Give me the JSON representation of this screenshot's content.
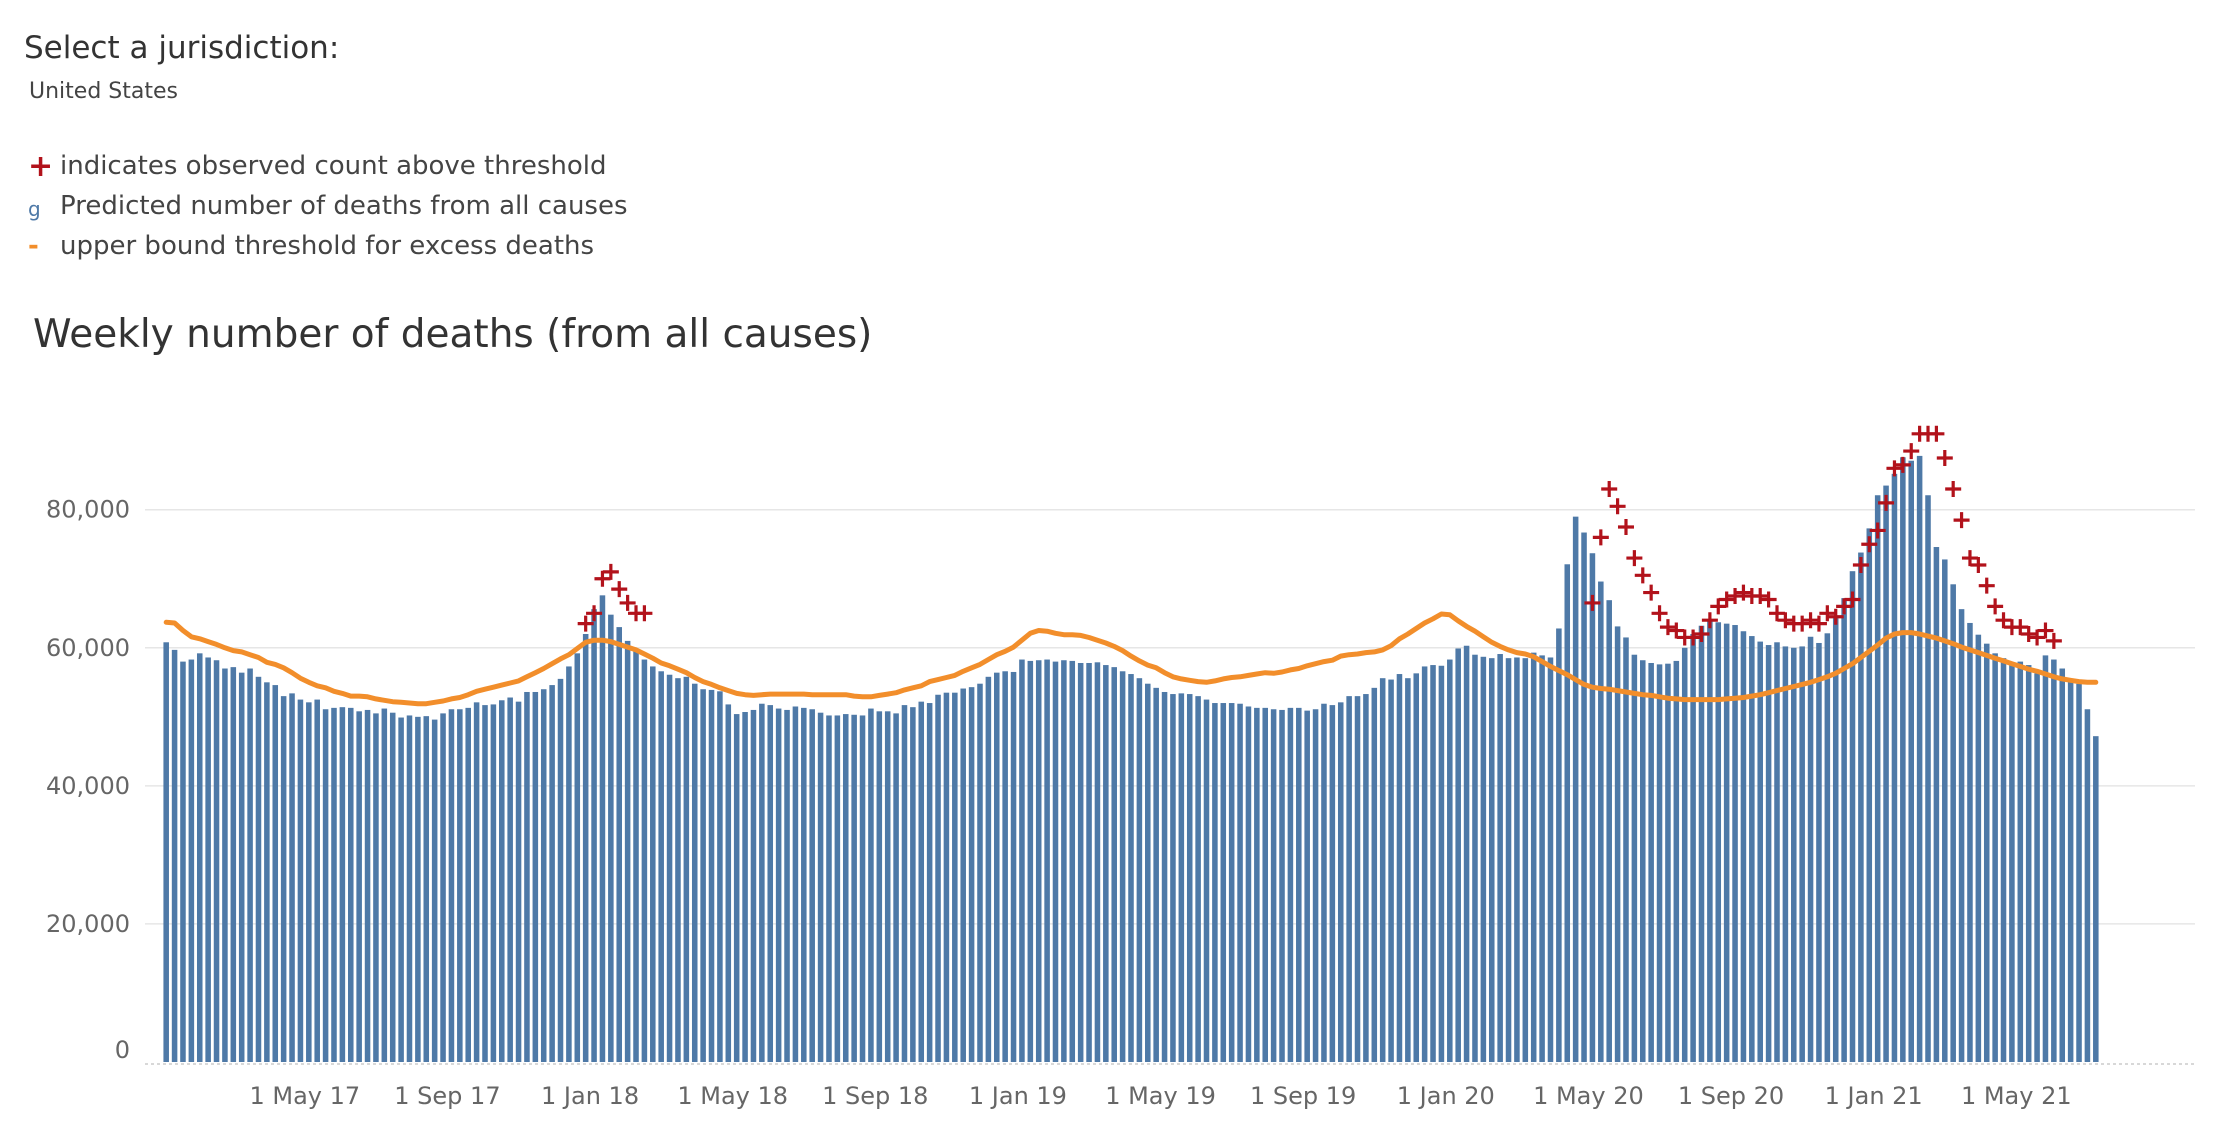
{
  "filter": {
    "label": "Select a jurisdiction:",
    "value": "United States"
  },
  "legend": [
    {
      "symbol": "+",
      "icon": "plus-icon",
      "color": "#b2121b",
      "text": "indicates observed count above threshold"
    },
    {
      "symbol": "g",
      "icon": "square-icon",
      "color": "#4e79a7",
      "text": "Predicted number of deaths from all causes"
    },
    {
      "symbol": "-",
      "icon": "dash-icon",
      "color": "#f28e2b",
      "text": "upper bound threshold for excess deaths"
    }
  ],
  "chart_data": {
    "type": "bar",
    "title": "Weekly number of deaths (from all causes)",
    "xlabel": "",
    "ylabel": "",
    "ylim": [
      0,
      93000
    ],
    "y_ticks": [
      0,
      20000,
      40000,
      60000,
      80000
    ],
    "y_tick_labels": [
      "0",
      "20,000",
      "40,000",
      "60,000",
      "80,000"
    ],
    "x_tick_labels": [
      "1 May 17",
      "1 Sep 17",
      "1 Jan 18",
      "1 May 18",
      "1 Sep 18",
      "1 Jan 19",
      "1 May 19",
      "1 Sep 19",
      "1 Jan 20",
      "1 May 20",
      "1 Sep 20",
      "1 Jan 21",
      "1 May 21"
    ],
    "x_tick_week_index": [
      17,
      34,
      51,
      68,
      85,
      102,
      119,
      136,
      153,
      170,
      187,
      204,
      221
    ],
    "colors": {
      "bar": "#4e79a7",
      "threshold": "#f28e2b",
      "marker": "#b2121b",
      "grid": "#e6e6e6"
    },
    "grid": true,
    "series": [
      {
        "name": "Predicted number of deaths from all causes",
        "kind": "bar",
        "values": [
          60800,
          59700,
          58000,
          58300,
          59200,
          58600,
          58200,
          57000,
          57200,
          56400,
          57000,
          55800,
          55000,
          54600,
          53000,
          53400,
          52500,
          52100,
          52500,
          51100,
          51300,
          51400,
          51300,
          50800,
          51000,
          50500,
          51200,
          50600,
          49900,
          50200,
          50000,
          50100,
          49600,
          50500,
          51100,
          51100,
          51300,
          52100,
          51700,
          51800,
          52400,
          52800,
          52200,
          53600,
          53600,
          54000,
          54600,
          55500,
          57300,
          59200,
          62000,
          65600,
          67600,
          64800,
          63000,
          61000,
          59700,
          58300,
          57300,
          56600,
          56100,
          55600,
          55800,
          54800,
          54000,
          53900,
          53700,
          51800,
          50400,
          50700,
          51000,
          51900,
          51700,
          51200,
          51000,
          51500,
          51300,
          51100,
          50600,
          50200,
          50200,
          50400,
          50300,
          50200,
          51200,
          50800,
          50800,
          50500,
          51700,
          51400,
          52200,
          52000,
          53200,
          53500,
          53500,
          54100,
          54300,
          54800,
          55800,
          56400,
          56600,
          56500,
          58300,
          58100,
          58200,
          58300,
          58000,
          58200,
          58100,
          57800,
          57800,
          57900,
          57500,
          57200,
          56600,
          56200,
          55600,
          54800,
          54200,
          53600,
          53300,
          53400,
          53300,
          53000,
          52500,
          52000,
          52000,
          52000,
          51900,
          51500,
          51300,
          51300,
          51100,
          51000,
          51300,
          51300,
          50900,
          51100,
          51900,
          51700,
          52100,
          53000,
          53000,
          53300,
          54200,
          55600,
          55400,
          56200,
          55600,
          56300,
          57300,
          57500,
          57400,
          58300,
          59900,
          60300,
          59000,
          58700,
          58500,
          59100,
          58500,
          58600,
          58500,
          59300,
          58900,
          58600,
          62800,
          72100,
          79000,
          76700,
          73700,
          69600,
          66900,
          63100,
          61500,
          59000,
          58200,
          57800,
          57600,
          57700,
          58100,
          60000,
          62000,
          63200,
          63900,
          63700,
          63500,
          63300,
          62400,
          61700,
          60900,
          60400,
          60800,
          60200,
          60000,
          60200,
          61600,
          60700,
          62100,
          64300,
          67200,
          71100,
          73800,
          77300,
          82100,
          83500,
          85200,
          87600,
          87100,
          87800,
          82100,
          74600,
          72800,
          69200,
          65600,
          63600,
          61900,
          60600,
          59200,
          58500,
          57900,
          58000,
          57500,
          56300,
          58900,
          58300,
          57000,
          55300,
          54800,
          51100,
          47200
        ]
      },
      {
        "name": "upper bound threshold for excess deaths",
        "kind": "line",
        "values": [
          63700,
          63600,
          62500,
          61600,
          61300,
          60900,
          60500,
          60000,
          59600,
          59400,
          59000,
          58600,
          57900,
          57600,
          57100,
          56400,
          55600,
          55000,
          54500,
          54200,
          53700,
          53400,
          53000,
          53000,
          52900,
          52600,
          52400,
          52200,
          52100,
          52000,
          51900,
          51900,
          52100,
          52300,
          52600,
          52800,
          53200,
          53700,
          54000,
          54300,
          54600,
          54900,
          55200,
          55800,
          56400,
          57000,
          57700,
          58400,
          59000,
          59900,
          60800,
          61100,
          61100,
          60900,
          60500,
          60100,
          59700,
          59100,
          58500,
          57800,
          57400,
          56900,
          56400,
          55700,
          55100,
          54700,
          54200,
          53800,
          53400,
          53200,
          53100,
          53200,
          53300,
          53300,
          53300,
          53300,
          53300,
          53200,
          53200,
          53200,
          53200,
          53200,
          53000,
          52900,
          52900,
          53100,
          53300,
          53500,
          53900,
          54200,
          54500,
          55100,
          55400,
          55700,
          56000,
          56600,
          57100,
          57600,
          58300,
          59000,
          59500,
          60100,
          61100,
          62100,
          62500,
          62400,
          62100,
          61900,
          61900,
          61800,
          61500,
          61100,
          60700,
          60200,
          59600,
          58800,
          58100,
          57500,
          57100,
          56400,
          55800,
          55500,
          55300,
          55100,
          55000,
          55200,
          55500,
          55700,
          55800,
          56000,
          56200,
          56400,
          56300,
          56500,
          56800,
          57000,
          57400,
          57700,
          58000,
          58200,
          58800,
          59000,
          59100,
          59300,
          59400,
          59700,
          60300,
          61300,
          62000,
          62800,
          63600,
          64200,
          64900,
          64800,
          63900,
          63100,
          62400,
          61600,
          60800,
          60200,
          59700,
          59300,
          59100,
          58700,
          58000,
          57300,
          56700,
          56100,
          55400,
          54700,
          54300,
          54100,
          54000,
          53800,
          53600,
          53400,
          53200,
          53100,
          52900,
          52700,
          52600,
          52500,
          52500,
          52500,
          52500,
          52500,
          52600,
          52700,
          52800,
          53000,
          53200,
          53500,
          53800,
          54100,
          54400,
          54700,
          55000,
          55400,
          55800,
          56300,
          57000,
          57700,
          58600,
          59500,
          60400,
          61400,
          62000,
          62200,
          62200,
          62000,
          61700,
          61400,
          61000,
          60600,
          60100,
          59700,
          59300,
          58900,
          58500,
          58100,
          57700,
          57300,
          56900,
          56600,
          56200,
          55800,
          55500,
          55300,
          55100,
          55000,
          55000
        ]
      },
      {
        "name": "indicates observed count above threshold",
        "kind": "marker",
        "points": [
          [
            50,
            63500
          ],
          [
            51,
            65000
          ],
          [
            52,
            70000
          ],
          [
            53,
            71000
          ],
          [
            54,
            68500
          ],
          [
            55,
            66500
          ],
          [
            56,
            65000
          ],
          [
            57,
            65000
          ],
          [
            170,
            66500
          ],
          [
            171,
            76000
          ],
          [
            172,
            83000
          ],
          [
            173,
            80500
          ],
          [
            174,
            77500
          ],
          [
            175,
            73000
          ],
          [
            176,
            70500
          ],
          [
            177,
            68000
          ],
          [
            178,
            65000
          ],
          [
            179,
            63000
          ],
          [
            180,
            62500
          ],
          [
            181,
            61500
          ],
          [
            182,
            61500
          ],
          [
            183,
            62000
          ],
          [
            184,
            64000
          ],
          [
            185,
            66000
          ],
          [
            186,
            67000
          ],
          [
            187,
            67500
          ],
          [
            188,
            68000
          ],
          [
            189,
            67500
          ],
          [
            190,
            67500
          ],
          [
            191,
            67000
          ],
          [
            192,
            65000
          ],
          [
            193,
            64000
          ],
          [
            194,
            63500
          ],
          [
            195,
            63500
          ],
          [
            196,
            64000
          ],
          [
            197,
            63500
          ],
          [
            198,
            65000
          ],
          [
            199,
            64500
          ],
          [
            200,
            66000
          ],
          [
            201,
            67000
          ],
          [
            202,
            72000
          ],
          [
            203,
            75000
          ],
          [
            204,
            77000
          ],
          [
            205,
            81000
          ],
          [
            206,
            86000
          ],
          [
            207,
            86500
          ],
          [
            208,
            88500
          ],
          [
            209,
            91000
          ],
          [
            210,
            91000
          ],
          [
            211,
            91000
          ],
          [
            212,
            87500
          ],
          [
            213,
            83000
          ],
          [
            214,
            78500
          ],
          [
            215,
            73000
          ],
          [
            216,
            72000
          ],
          [
            217,
            69000
          ],
          [
            218,
            66000
          ],
          [
            219,
            64000
          ],
          [
            220,
            63000
          ],
          [
            221,
            63000
          ],
          [
            222,
            62000
          ],
          [
            223,
            61500
          ],
          [
            224,
            62500
          ],
          [
            225,
            61000
          ]
        ]
      }
    ]
  }
}
